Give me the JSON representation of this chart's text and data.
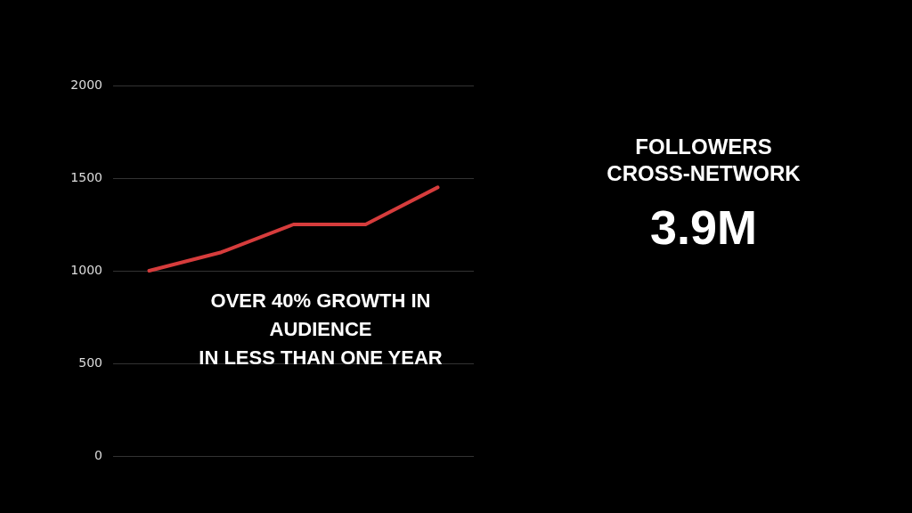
{
  "chart_data": {
    "type": "line",
    "categories": [
      null,
      null,
      null,
      null,
      null
    ],
    "series": [
      {
        "color": "#d63c3c",
        "values": [
          1000,
          1100,
          1250,
          1250,
          1450
        ]
      }
    ],
    "ylim": [
      0,
      2000
    ],
    "yticks": [
      0,
      500,
      1000,
      1500,
      2000
    ],
    "grid": "y",
    "legend": false,
    "marker": "none",
    "line_style": "solid",
    "annotations": [
      "OVER 40% GROWTH IN\nAUDIENCE\nIN LESS THAN ONE YEAR",
      "FOLLOWERS\nCROSS-NETWORK",
      "3.9M"
    ]
  }
}
